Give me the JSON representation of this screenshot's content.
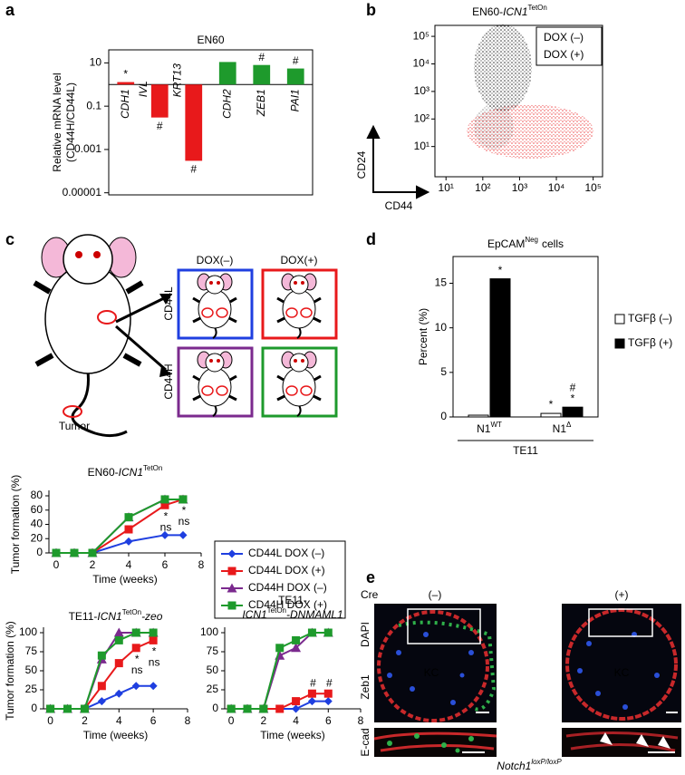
{
  "panel_labels": [
    "a",
    "b",
    "c",
    "d",
    "e"
  ],
  "chart_data": [
    {
      "type": "bar",
      "title": "EN60",
      "ylabel": [
        "Relative mRNA level",
        "(CD44H/CD44L)"
      ],
      "categories": [
        "CDH1",
        "IVL",
        "KRT13",
        "CDH2",
        "ZEB1",
        "PAI1"
      ],
      "values": [
        1.3,
        0.03,
        0.0003,
        11,
        8,
        5.5
      ],
      "colors": [
        "#e8191b",
        "#e8191b",
        "#e8191b",
        "#1e9a2c",
        "#1e9a2c",
        "#1e9a2c"
      ],
      "bar_annotations": [
        "*",
        "#",
        "#",
        null,
        "#",
        "#"
      ],
      "log_scale": true,
      "baseline": 1,
      "ylim": [
        8e-06,
        40
      ],
      "yticks": [
        1e-05,
        0.001,
        0.1,
        10
      ]
    },
    {
      "type": "density",
      "title": "EN60-",
      "title_italic": "ICN1",
      "title_sup": "TetOn",
      "xlabel": "CD44",
      "ylabel": "CD24",
      "series": [
        {
          "name": "DOX (–)",
          "color": "#000000"
        },
        {
          "name": "DOX (+)",
          "color": "#e8191b"
        }
      ],
      "log_scale": true,
      "xlim": [
        5,
        180000
      ],
      "ylim": [
        0.8,
        250000
      ],
      "xticks": [
        {
          "value": 10,
          "label": "10¹"
        },
        {
          "value": 100,
          "label": "10²"
        },
        {
          "value": 1000,
          "label": "10³"
        },
        {
          "value": 10000,
          "label": "10⁴"
        },
        {
          "value": 100000,
          "label": "10⁵"
        }
      ],
      "yticks": [
        {
          "value": 10,
          "label": "10¹"
        },
        {
          "value": 100,
          "label": "10²"
        },
        {
          "value": 1000,
          "label": "10³"
        },
        {
          "value": 10000,
          "label": "10⁴"
        },
        {
          "value": 100000,
          "label": "10⁵"
        }
      ]
    },
    {
      "type": "line",
      "title": "EN60-",
      "title_italic": "ICN1",
      "title_sup": "TetOn",
      "xlabel": "Time (weeks)",
      "ylabel": "Tumor formation (%)",
      "x": [
        0,
        1,
        2,
        4,
        6,
        7
      ],
      "series": [
        {
          "name": "CD44L DOX (–)",
          "color": "#1f3fe0",
          "marker": "diamond",
          "values": [
            0,
            0,
            0,
            16,
            25,
            25
          ]
        },
        {
          "name": "CD44L DOX (+)",
          "color": "#e8191b",
          "marker": "square",
          "values": [
            0,
            0,
            0,
            33,
            67,
            75
          ],
          "annotations": [
            null,
            null,
            null,
            null,
            [
              "*",
              "ns"
            ],
            [
              "*",
              "ns"
            ]
          ]
        },
        {
          "name": "CD44H DOX (–)",
          "color": "#7b2a8e",
          "marker": "triangle",
          "values": [
            0,
            0,
            0,
            50,
            75,
            75
          ]
        },
        {
          "name": "CD44H DOX (+)",
          "color": "#1e9a2c",
          "marker": "square",
          "values": [
            0,
            0,
            0,
            50,
            75,
            75
          ]
        }
      ],
      "xlim": [
        -0.4,
        8
      ],
      "ylim": [
        0,
        80
      ],
      "xticks": [
        0,
        2,
        4,
        6,
        8
      ],
      "yticks": [
        0,
        20,
        40,
        60,
        80
      ],
      "legend": true,
      "annotation_side": "below"
    },
    {
      "type": "line",
      "title": "TE11-",
      "title_italic": "ICN1",
      "title_sup": "TetOn",
      "title_suffix": "-zeo",
      "xlabel": "Time (weeks)",
      "ylabel": "Tumor formation (%)",
      "x": [
        0,
        1,
        2,
        3,
        4,
        5,
        6
      ],
      "series": [
        {
          "color": "#1f3fe0",
          "marker": "diamond",
          "values": [
            0,
            0,
            0,
            10,
            20,
            30,
            30
          ]
        },
        {
          "color": "#e8191b",
          "marker": "square",
          "values": [
            0,
            0,
            0,
            30,
            60,
            80,
            90
          ],
          "annotations": [
            null,
            null,
            null,
            null,
            null,
            [
              "*",
              "ns"
            ],
            [
              "*",
              "ns"
            ]
          ]
        },
        {
          "color": "#7b2a8e",
          "marker": "triangle",
          "values": [
            0,
            0,
            0,
            65,
            100,
            100,
            100
          ]
        },
        {
          "color": "#1e9a2c",
          "marker": "square",
          "values": [
            0,
            0,
            0,
            70,
            90,
            100,
            100
          ]
        }
      ],
      "xlim": [
        -0.4,
        8
      ],
      "ylim": [
        0,
        100
      ],
      "xticks": [
        0,
        2,
        4,
        6,
        8
      ],
      "yticks": [
        0,
        25,
        50,
        75,
        100
      ],
      "annotation_side": "below"
    },
    {
      "type": "line",
      "title": "TE11-",
      "title_italic": "ICN1",
      "title_sup": "TetOn",
      "title_suffix": "-DNMAML1",
      "title_wrap": true,
      "xlabel": "Time (weeks)",
      "x": [
        0,
        1,
        2,
        3,
        4,
        5,
        6
      ],
      "series": [
        {
          "color": "#1f3fe0",
          "marker": "diamond",
          "values": [
            0,
            0,
            0,
            0,
            0,
            10,
            10
          ]
        },
        {
          "color": "#e8191b",
          "marker": "square",
          "values": [
            0,
            0,
            0,
            0,
            10,
            20,
            20
          ],
          "annotations": [
            null,
            null,
            null,
            null,
            null,
            [
              "#"
            ],
            [
              "#"
            ]
          ]
        },
        {
          "color": "#7b2a8e",
          "marker": "triangle",
          "values": [
            0,
            0,
            0,
            70,
            80,
            100,
            100
          ]
        },
        {
          "color": "#1e9a2c",
          "marker": "square",
          "values": [
            0,
            0,
            0,
            80,
            90,
            100,
            100
          ]
        }
      ],
      "xlim": [
        -0.4,
        8
      ],
      "ylim": [
        0,
        100
      ],
      "xticks": [
        0,
        2,
        4,
        6,
        8
      ],
      "yticks": [
        0,
        25,
        50,
        75,
        100
      ],
      "annotation_side": "above"
    },
    {
      "type": "grouped_bar",
      "title": "EpCAM",
      "title_sup": "Neg",
      "title_suffix": "cells",
      "ylabel": "Percent (%)",
      "categories": [
        "N1",
        "N1"
      ],
      "category_superscripts": [
        "WT",
        "Δ"
      ],
      "group_label": "TE11",
      "series": [
        {
          "name": "TGFβ (–)",
          "color": "#ffffff",
          "values": [
            0.2,
            0.4
          ],
          "annotations": [
            null,
            [
              "*"
            ]
          ]
        },
        {
          "name": "TGFβ (+)",
          "color": "#000000",
          "values": [
            15.5,
            1.1
          ],
          "annotations": [
            [
              "*"
            ],
            [
              "#",
              "*"
            ]
          ]
        }
      ],
      "ylim": [
        0,
        18
      ],
      "yticks": [
        0,
        5,
        10,
        15
      ],
      "legend": "right"
    }
  ],
  "diagram_c": {
    "columns": [
      "DOX(–)",
      "DOX(+)"
    ],
    "rows": [
      "CD44L",
      "CD44H"
    ],
    "tumor_label": "Tumor"
  },
  "panel_e": {
    "condition_label": "Cre",
    "columns": [
      "(–)",
      "(+)"
    ],
    "channels": [
      "DAPI",
      "Zeb1",
      "E-cad"
    ],
    "region_label": "KC",
    "footer": "Notch1",
    "footer_sup": "loxP/loxP"
  }
}
